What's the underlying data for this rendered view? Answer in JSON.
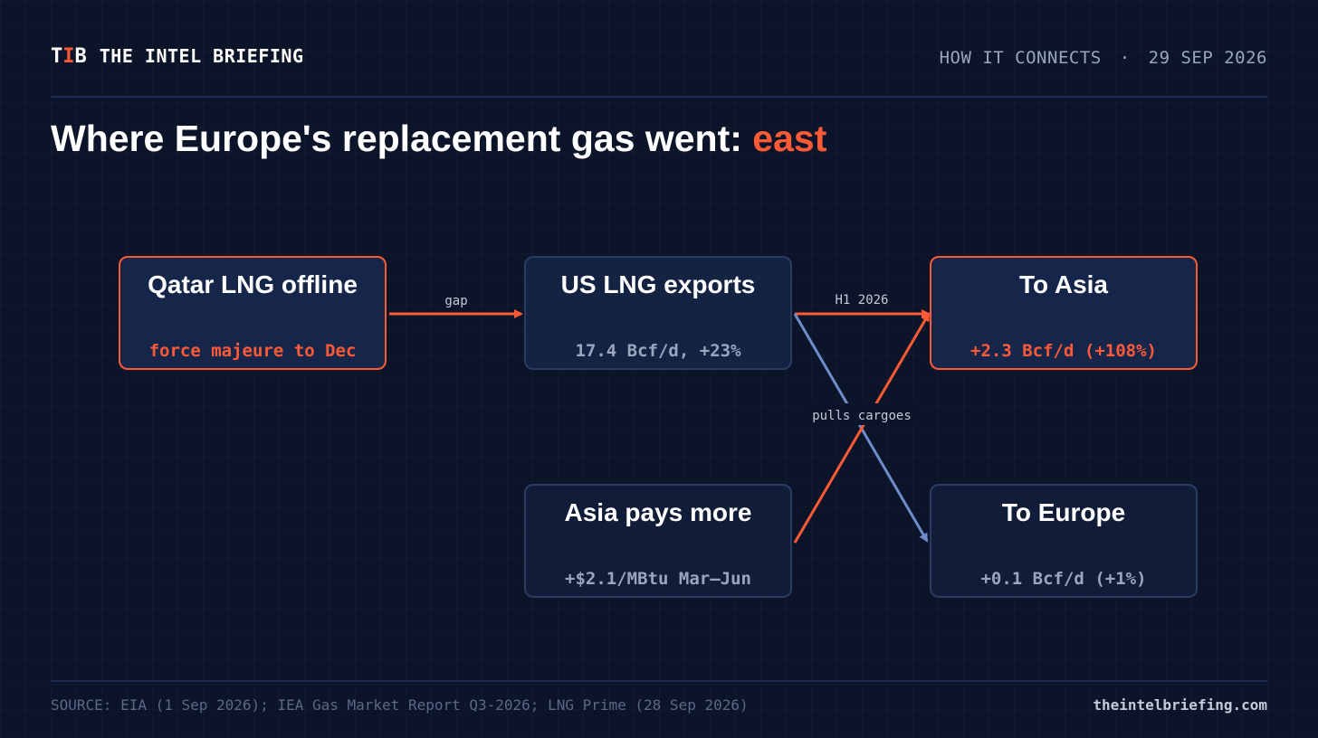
{
  "header": {
    "logo": {
      "t": "T",
      "i": "I",
      "b": "B"
    },
    "brand": "THE INTEL BRIEFING",
    "section": "HOW IT CONNECTS",
    "separator": "·",
    "date": "29 SEP 2026"
  },
  "title": {
    "text": "Where Europe's replacement gas went: ",
    "accent": "east"
  },
  "diagram": {
    "nodes": {
      "qatar": {
        "title": "Qatar LNG offline",
        "detail": "force majeure to Dec"
      },
      "us_lng": {
        "title": "US LNG exports",
        "detail": "17.4 Bcf/d, +23%"
      },
      "asia_price": {
        "title": "Asia pays more",
        "detail": "+$2.1/MBtu Mar–Jun"
      },
      "to_asia": {
        "title": "To Asia",
        "detail": "+2.3 Bcf/d (+108%)"
      },
      "to_europe": {
        "title": "To Europe",
        "detail": "+0.1 Bcf/d (+1%)"
      }
    },
    "edges": {
      "gap": "gap",
      "h1": "H1 2026",
      "pulls": "pulls cargoes"
    }
  },
  "footer": {
    "source": "SOURCE: EIA (1 Sep 2026); IEA Gas Market Report Q3-2026; LNG Prime (28 Sep 2026)",
    "site": "theintelbriefing.com"
  },
  "colors": {
    "background": "#0b1428",
    "accent": "#ff5a36",
    "secondary_link": "#6f8ccc",
    "node_fill": "#152342",
    "node_border": "#2a3b64",
    "muted_text": "#9aa6bd"
  }
}
